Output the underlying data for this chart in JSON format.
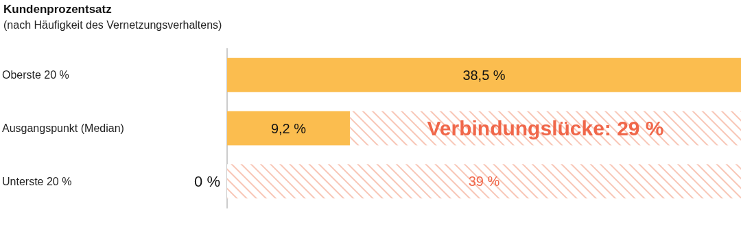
{
  "chart_data": {
    "type": "bar",
    "orientation": "horizontal",
    "stacked": true,
    "title": "Kundenprozentsatz",
    "subtitle": "(nach Häufigkeit des Vernetzungsverhaltens)",
    "categories": [
      "Oberste 20 %",
      "Ausgangspunkt (Median)",
      "Unterste 20 %"
    ],
    "series": [
      {
        "color": "#fbbd4f",
        "values": [
          38.5,
          9.2,
          0
        ],
        "value_labels": [
          "38,5 %",
          "9,2 %",
          "0 %"
        ]
      },
      {
        "color": "#f8c6b6",
        "values": [
          null,
          29.3,
          38.5
        ],
        "value_labels": [
          null,
          "Verbindungslücke: 29 %",
          "39 %"
        ]
      }
    ],
    "tick_labels": "y",
    "grid": false
  }
}
